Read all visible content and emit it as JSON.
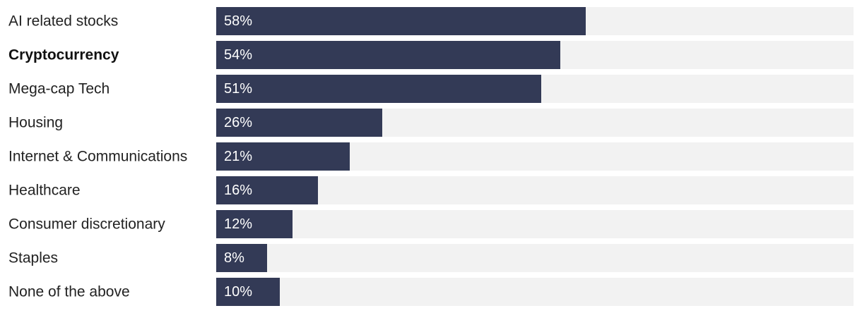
{
  "chart_data": {
    "type": "bar",
    "orientation": "horizontal",
    "categories": [
      "AI related stocks",
      "Cryptocurrency",
      "Mega-cap Tech",
      "Housing",
      "Internet & Communications",
      "Healthcare",
      "Consumer discretionary",
      "Staples",
      "None of the above"
    ],
    "values": [
      58,
      54,
      51,
      26,
      21,
      16,
      12,
      8,
      10
    ],
    "value_labels": [
      "58%",
      "54%",
      "51%",
      "26%",
      "21%",
      "16%",
      "12%",
      "8%",
      "10%"
    ],
    "highlighted_category": "Cryptocurrency",
    "unit": "%",
    "xlim": [
      0,
      100
    ],
    "grid": false,
    "legend": "none",
    "colors": {
      "bar": "#333a56",
      "track": "#f2f2f2",
      "value_text": "#ffffff",
      "label_text": "#222222"
    }
  }
}
